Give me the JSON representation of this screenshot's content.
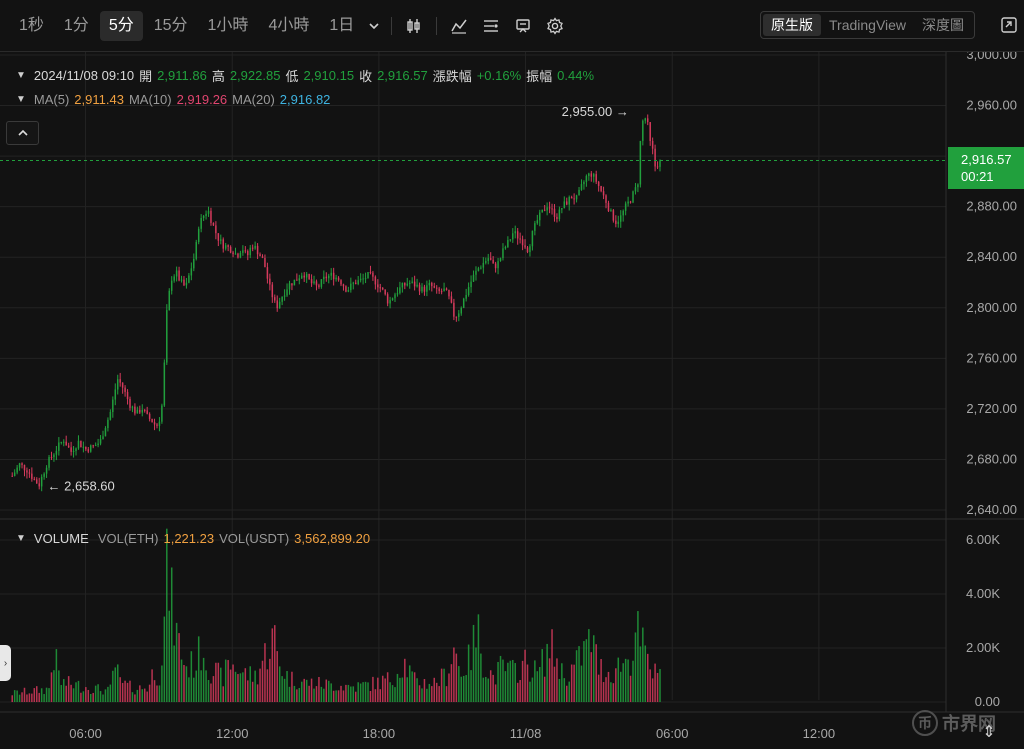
{
  "toolbar": {
    "timeframes": [
      "1秒",
      "1分",
      "5分",
      "15分",
      "1小時",
      "4小時",
      "1日"
    ],
    "active_timeframe": "5分",
    "views": [
      "原生版",
      "TradingView",
      "深度圖"
    ],
    "active_view": "原生版"
  },
  "legend": {
    "datetime": "2024/11/08 09:10",
    "open_label": "開",
    "open": "2,911.86",
    "high_label": "高",
    "high": "2,922.85",
    "low_label": "低",
    "low": "2,910.15",
    "close_label": "收",
    "close": "2,916.57",
    "change_label": "漲跌幅",
    "change": "+0.16%",
    "amplitude_label": "振幅",
    "amplitude": "0.44%",
    "ma5_label": "MA(5)",
    "ma5": "2,911.43",
    "ma10_label": "MA(10)",
    "ma10": "2,919.26",
    "ma20_label": "MA(20)",
    "ma20": "2,916.82"
  },
  "volume_legend": {
    "title": "VOLUME",
    "vol_eth_label": "VOL(ETH)",
    "vol_eth": "1,221.23",
    "vol_usdt_label": "VOL(USDT)",
    "vol_usdt": "3,562,899.20"
  },
  "last_price": {
    "price": "2,916.57",
    "countdown": "00:21"
  },
  "annotations": {
    "high_marker": "2,955.00",
    "low_marker": "2,658.60"
  },
  "watermark": {
    "text": "市界网"
  },
  "colors": {
    "up": "#21a03d",
    "down": "#d63a5c",
    "ma5": "#f0a040",
    "ma10": "#e0456f",
    "ma20": "#3eb3e0",
    "grid": "#232323",
    "text": "#bfbfbf",
    "axis_text": "#a8a8a8"
  },
  "chart_data": [
    {
      "type": "candlestick",
      "title": "",
      "y_axis_ticks": [
        "3,000.00",
        "2,960.00",
        "2,920.00",
        "2,880.00",
        "2,840.00",
        "2,800.00",
        "2,760.00",
        "2,720.00",
        "2,680.00",
        "2,640.00"
      ],
      "ylim": [
        2640,
        3000
      ],
      "x_axis_ticks": [
        "06:00",
        "12:00",
        "18:00",
        "11/08",
        "06:00",
        "12:00"
      ],
      "close_path": [
        [
          0,
          2667
        ],
        [
          6,
          2676
        ],
        [
          12,
          2672
        ],
        [
          18,
          2664
        ],
        [
          22,
          2660
        ],
        [
          28,
          2676
        ],
        [
          36,
          2688
        ],
        [
          42,
          2696
        ],
        [
          48,
          2686
        ],
        [
          54,
          2694
        ],
        [
          60,
          2688
        ],
        [
          66,
          2690
        ],
        [
          72,
          2694
        ],
        [
          76,
          2706
        ],
        [
          80,
          2716
        ],
        [
          84,
          2734
        ],
        [
          86,
          2744
        ],
        [
          90,
          2738
        ],
        [
          96,
          2724
        ],
        [
          102,
          2716
        ],
        [
          106,
          2721
        ],
        [
          110,
          2714
        ],
        [
          114,
          2711
        ],
        [
          118,
          2706
        ],
        [
          122,
          2716
        ],
        [
          124,
          2744
        ],
        [
          126,
          2792
        ],
        [
          128,
          2808
        ],
        [
          130,
          2823
        ],
        [
          134,
          2828
        ],
        [
          138,
          2820
        ],
        [
          142,
          2816
        ],
        [
          146,
          2830
        ],
        [
          150,
          2844
        ],
        [
          152,
          2864
        ],
        [
          156,
          2872
        ],
        [
          160,
          2878
        ],
        [
          164,
          2866
        ],
        [
          168,
          2856
        ],
        [
          172,
          2850
        ],
        [
          176,
          2848
        ],
        [
          180,
          2846
        ],
        [
          184,
          2841
        ],
        [
          188,
          2848
        ],
        [
          192,
          2840
        ],
        [
          196,
          2850
        ],
        [
          200,
          2846
        ],
        [
          206,
          2836
        ],
        [
          210,
          2818
        ],
        [
          214,
          2806
        ],
        [
          216,
          2800
        ],
        [
          220,
          2808
        ],
        [
          226,
          2818
        ],
        [
          232,
          2822
        ],
        [
          238,
          2828
        ],
        [
          244,
          2820
        ],
        [
          250,
          2816
        ],
        [
          256,
          2824
        ],
        [
          262,
          2826
        ],
        [
          268,
          2822
        ],
        [
          274,
          2814
        ],
        [
          280,
          2820
        ],
        [
          286,
          2822
        ],
        [
          292,
          2826
        ],
        [
          298,
          2820
        ],
        [
          304,
          2812
        ],
        [
          308,
          2804
        ],
        [
          312,
          2810
        ],
        [
          318,
          2816
        ],
        [
          324,
          2820
        ],
        [
          330,
          2818
        ],
        [
          336,
          2814
        ],
        [
          342,
          2818
        ],
        [
          348,
          2812
        ],
        [
          354,
          2814
        ],
        [
          358,
          2806
        ],
        [
          362,
          2792
        ],
        [
          366,
          2798
        ],
        [
          370,
          2808
        ],
        [
          374,
          2818
        ],
        [
          378,
          2826
        ],
        [
          382,
          2832
        ],
        [
          386,
          2836
        ],
        [
          390,
          2840
        ],
        [
          394,
          2832
        ],
        [
          398,
          2836
        ],
        [
          402,
          2846
        ],
        [
          406,
          2852
        ],
        [
          410,
          2860
        ],
        [
          414,
          2856
        ],
        [
          418,
          2852
        ],
        [
          422,
          2846
        ],
        [
          426,
          2860
        ],
        [
          430,
          2870
        ],
        [
          434,
          2876
        ],
        [
          438,
          2882
        ],
        [
          442,
          2876
        ],
        [
          446,
          2872
        ],
        [
          450,
          2880
        ],
        [
          454,
          2884
        ],
        [
          458,
          2888
        ],
        [
          462,
          2886
        ],
        [
          466,
          2896
        ],
        [
          470,
          2904
        ],
        [
          474,
          2906
        ],
        [
          478,
          2900
        ],
        [
          482,
          2892
        ],
        [
          486,
          2884
        ],
        [
          490,
          2874
        ],
        [
          494,
          2868
        ],
        [
          498,
          2872
        ],
        [
          502,
          2880
        ],
        [
          506,
          2886
        ],
        [
          510,
          2894
        ],
        [
          512,
          2900
        ],
        [
          514,
          2932
        ],
        [
          516,
          2948
        ],
        [
          518,
          2950
        ],
        [
          520,
          2944
        ],
        [
          522,
          2930
        ],
        [
          524,
          2924
        ],
        [
          526,
          2912
        ],
        [
          528,
          2914
        ],
        [
          530,
          2916.57
        ]
      ],
      "high_point": {
        "x": 516,
        "y": 2955.0
      },
      "low_point": {
        "x": 24,
        "y": 2658.6
      },
      "last_price": 2916.57,
      "x_ticks_at": [
        60,
        180,
        300,
        420,
        540,
        660
      ],
      "x_ticks_labels": [
        "06:00",
        "12:00",
        "18:00",
        "11/08",
        "06:00",
        "12:00"
      ],
      "xlim": [
        -10,
        764
      ],
      "grid": true
    },
    {
      "type": "bar",
      "title": "VOLUME",
      "y_axis_ticks": [
        "6.00K",
        "4.00K",
        "2.00K",
        "0.00"
      ],
      "ylim": [
        0,
        6000
      ],
      "volume_profile": [
        [
          0,
          400
        ],
        [
          30,
          600
        ],
        [
          34,
          2200
        ],
        [
          40,
          900
        ],
        [
          60,
          700
        ],
        [
          80,
          500
        ],
        [
          84,
          1800
        ],
        [
          88,
          900
        ],
        [
          100,
          600
        ],
        [
          112,
          700
        ],
        [
          116,
          1600
        ],
        [
          120,
          1100
        ],
        [
          124,
          2900
        ],
        [
          126,
          5700
        ],
        [
          128,
          6000
        ],
        [
          130,
          4600
        ],
        [
          134,
          3200
        ],
        [
          138,
          2400
        ],
        [
          142,
          1600
        ],
        [
          150,
          1800
        ],
        [
          156,
          2600
        ],
        [
          160,
          1600
        ],
        [
          166,
          1400
        ],
        [
          172,
          1100
        ],
        [
          178,
          1800
        ],
        [
          190,
          1300
        ],
        [
          200,
          1200
        ],
        [
          206,
          2100
        ],
        [
          210,
          2500
        ],
        [
          214,
          3100
        ],
        [
          218,
          1800
        ],
        [
          226,
          1100
        ],
        [
          240,
          900
        ],
        [
          260,
          800
        ],
        [
          280,
          700
        ],
        [
          300,
          900
        ],
        [
          312,
          1100
        ],
        [
          320,
          1900
        ],
        [
          330,
          900
        ],
        [
          346,
          900
        ],
        [
          356,
          1300
        ],
        [
          362,
          2700
        ],
        [
          366,
          1400
        ],
        [
          374,
          1900
        ],
        [
          378,
          2800
        ],
        [
          382,
          3100
        ],
        [
          386,
          1800
        ],
        [
          394,
          1100
        ],
        [
          400,
          1600
        ],
        [
          410,
          1400
        ],
        [
          420,
          1800
        ],
        [
          430,
          1300
        ],
        [
          440,
          2600
        ],
        [
          446,
          1900
        ],
        [
          452,
          1100
        ],
        [
          462,
          1800
        ],
        [
          468,
          2400
        ],
        [
          474,
          2900
        ],
        [
          480,
          1600
        ],
        [
          490,
          1300
        ],
        [
          498,
          1800
        ],
        [
          506,
          2000
        ],
        [
          510,
          3200
        ],
        [
          514,
          2900
        ],
        [
          518,
          2100
        ],
        [
          524,
          1400
        ],
        [
          530,
          1100
        ]
      ],
      "last_volume_eth": 1221.23
    }
  ]
}
